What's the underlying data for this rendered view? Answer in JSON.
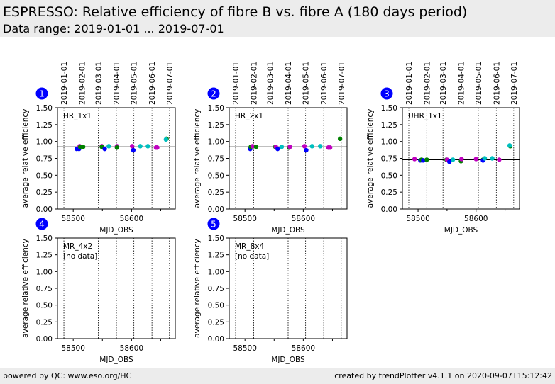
{
  "header": {
    "title": "ESPRESSO: Relative efficiency of fibre B vs. fibre A (180 days period)",
    "subtitle": "Data range: 2019-01-01 ... 2019-07-01"
  },
  "footer": {
    "left": "powered by QC: www.eso.org/HC",
    "right": "created by trendPlotter v4.1.1 on 2020-09-07T15:12:42"
  },
  "colors": {
    "blue": "#0000ff",
    "magenta": "#bf00bf",
    "green": "#008000",
    "cyan": "#00bfbf",
    "badge": "#0000ff",
    "header_bg": "#ececec"
  },
  "chart_data": [
    {
      "type": "scatter",
      "index": "1",
      "label": "HR_1x1",
      "no_data_text": "",
      "xlabel": "MJD_OBS",
      "ylabel": "average relative efficiency",
      "xlim": [
        58473,
        58675
      ],
      "ylim": [
        0,
        1.5
      ],
      "xticks": [
        58500,
        58600
      ],
      "xminor": [
        58550,
        58650
      ],
      "yticks": [
        "0.00",
        "0.25",
        "0.50",
        "0.75",
        "1.00",
        "1.25",
        "1.50"
      ],
      "reference_line": 0.92,
      "date_lines": [
        {
          "label": "2019-01-01",
          "mjd": 58484
        },
        {
          "label": "2019-02-01",
          "mjd": 58515
        },
        {
          "label": "2019-03-01",
          "mjd": 58543
        },
        {
          "label": "2019-04-01",
          "mjd": 58574
        },
        {
          "label": "2019-05-01",
          "mjd": 58604
        },
        {
          "label": "2019-06-01",
          "mjd": 58635
        },
        {
          "label": "2019-07-01",
          "mjd": 58665
        }
      ],
      "points": [
        {
          "x": 58506,
          "y": 0.89,
          "c": "blue"
        },
        {
          "x": 58510,
          "y": 0.89,
          "c": "blue"
        },
        {
          "x": 58511,
          "y": 0.93,
          "c": "magenta"
        },
        {
          "x": 58512,
          "y": 0.92,
          "c": "green"
        },
        {
          "x": 58517,
          "y": 0.92,
          "c": "green"
        },
        {
          "x": 58549,
          "y": 0.93,
          "c": "magenta"
        },
        {
          "x": 58549,
          "y": 0.92,
          "c": "green"
        },
        {
          "x": 58554,
          "y": 0.89,
          "c": "blue"
        },
        {
          "x": 58561,
          "y": 0.93,
          "c": "cyan"
        },
        {
          "x": 58575,
          "y": 0.93,
          "c": "magenta"
        },
        {
          "x": 58575,
          "y": 0.91,
          "c": "green"
        },
        {
          "x": 58601,
          "y": 0.93,
          "c": "magenta"
        },
        {
          "x": 58603,
          "y": 0.87,
          "c": "blue"
        },
        {
          "x": 58615,
          "y": 0.93,
          "c": "cyan"
        },
        {
          "x": 58628,
          "y": 0.93,
          "c": "cyan"
        },
        {
          "x": 58642,
          "y": 0.91,
          "c": "magenta"
        },
        {
          "x": 58644,
          "y": 0.91,
          "c": "magenta"
        },
        {
          "x": 58660,
          "y": 1.04,
          "c": "green"
        },
        {
          "x": 58659,
          "y": 1.03,
          "c": "cyan"
        }
      ]
    },
    {
      "type": "scatter",
      "index": "2",
      "label": "HR_2x1",
      "no_data_text": "",
      "xlabel": "MJD_OBS",
      "ylabel": "average relative efficiency",
      "xlim": [
        58473,
        58675
      ],
      "ylim": [
        0,
        1.5
      ],
      "xticks": [
        58500,
        58600
      ],
      "xminor": [
        58550,
        58650
      ],
      "yticks": [
        "0.00",
        "0.25",
        "0.50",
        "0.75",
        "1.00",
        "1.25",
        "1.50"
      ],
      "reference_line": 0.92,
      "date_lines": [
        {
          "label": "2019-01-01",
          "mjd": 58484
        },
        {
          "label": "2019-02-01",
          "mjd": 58515
        },
        {
          "label": "2019-03-01",
          "mjd": 58543
        },
        {
          "label": "2019-04-01",
          "mjd": 58574
        },
        {
          "label": "2019-05-01",
          "mjd": 58604
        },
        {
          "label": "2019-06-01",
          "mjd": 58635
        },
        {
          "label": "2019-07-01",
          "mjd": 58665
        }
      ],
      "points": [
        {
          "x": 58509,
          "y": 0.89,
          "c": "blue"
        },
        {
          "x": 58510,
          "y": 0.92,
          "c": "green"
        },
        {
          "x": 58513,
          "y": 0.93,
          "c": "magenta"
        },
        {
          "x": 58519,
          "y": 0.92,
          "c": "green"
        },
        {
          "x": 58552,
          "y": 0.92,
          "c": "green"
        },
        {
          "x": 58553,
          "y": 0.92,
          "c": "magenta"
        },
        {
          "x": 58556,
          "y": 0.89,
          "c": "blue"
        },
        {
          "x": 58563,
          "y": 0.92,
          "c": "cyan"
        },
        {
          "x": 58576,
          "y": 0.91,
          "c": "green"
        },
        {
          "x": 58577,
          "y": 0.92,
          "c": "magenta"
        },
        {
          "x": 58602,
          "y": 0.93,
          "c": "magenta"
        },
        {
          "x": 58605,
          "y": 0.87,
          "c": "blue"
        },
        {
          "x": 58615,
          "y": 0.93,
          "c": "cyan"
        },
        {
          "x": 58629,
          "y": 0.93,
          "c": "cyan"
        },
        {
          "x": 58643,
          "y": 0.91,
          "c": "magenta"
        },
        {
          "x": 58646,
          "y": 0.91,
          "c": "magenta"
        },
        {
          "x": 58663,
          "y": 1.04,
          "c": "green"
        }
      ]
    },
    {
      "type": "scatter",
      "index": "3",
      "label": "UHR_1x1",
      "no_data_text": "",
      "xlabel": "MJD_OBS",
      "ylabel": "average relative efficiency",
      "xlim": [
        58473,
        58675
      ],
      "ylim": [
        0,
        1.5
      ],
      "xticks": [
        58500,
        58600
      ],
      "xminor": [
        58550,
        58650
      ],
      "yticks": [
        "0.00",
        "0.25",
        "0.50",
        "0.75",
        "1.00",
        "1.25",
        "1.50"
      ],
      "reference_line": 0.73,
      "date_lines": [
        {
          "label": "2019-01-01",
          "mjd": 58484
        },
        {
          "label": "2019-02-01",
          "mjd": 58515
        },
        {
          "label": "2019-03-01",
          "mjd": 58543
        },
        {
          "label": "2019-04-01",
          "mjd": 58574
        },
        {
          "label": "2019-05-01",
          "mjd": 58604
        },
        {
          "label": "2019-06-01",
          "mjd": 58635
        },
        {
          "label": "2019-07-01",
          "mjd": 58665
        }
      ],
      "points": [
        {
          "x": 58494,
          "y": 0.74,
          "c": "magenta"
        },
        {
          "x": 58504,
          "y": 0.72,
          "c": "blue"
        },
        {
          "x": 58506,
          "y": 0.73,
          "c": "green"
        },
        {
          "x": 58509,
          "y": 0.72,
          "c": "blue"
        },
        {
          "x": 58515,
          "y": 0.73,
          "c": "green"
        },
        {
          "x": 58549,
          "y": 0.73,
          "c": "green"
        },
        {
          "x": 58550,
          "y": 0.73,
          "c": "magenta"
        },
        {
          "x": 58554,
          "y": 0.7,
          "c": "blue"
        },
        {
          "x": 58560,
          "y": 0.73,
          "c": "cyan"
        },
        {
          "x": 58574,
          "y": 0.71,
          "c": "green"
        },
        {
          "x": 58575,
          "y": 0.74,
          "c": "magenta"
        },
        {
          "x": 58600,
          "y": 0.74,
          "c": "magenta"
        },
        {
          "x": 58612,
          "y": 0.73,
          "c": "green"
        },
        {
          "x": 58612,
          "y": 0.72,
          "c": "blue"
        },
        {
          "x": 58615,
          "y": 0.75,
          "c": "cyan"
        },
        {
          "x": 58628,
          "y": 0.75,
          "c": "cyan"
        },
        {
          "x": 58640,
          "y": 0.73,
          "c": "magenta"
        },
        {
          "x": 58659,
          "y": 0.93,
          "c": "green"
        },
        {
          "x": 58658,
          "y": 0.94,
          "c": "cyan"
        }
      ]
    },
    {
      "type": "scatter",
      "index": "4",
      "label": "MR_4x2",
      "no_data_text": "[no data]",
      "xlabel": "MJD_OBS",
      "ylabel": "average relative efficiency",
      "xlim": [
        58473,
        58675
      ],
      "ylim": [
        0,
        1.5
      ],
      "xticks": [
        58500,
        58600
      ],
      "xminor": [
        58550,
        58650
      ],
      "yticks": [
        "0.00",
        "0.25",
        "0.50",
        "0.75",
        "1.00",
        "1.25",
        "1.50"
      ],
      "reference_line": null,
      "date_lines": [
        {
          "label": "2019-01-01",
          "mjd": 58484
        },
        {
          "label": "2019-02-01",
          "mjd": 58515
        },
        {
          "label": "2019-03-01",
          "mjd": 58543
        },
        {
          "label": "2019-04-01",
          "mjd": 58574
        },
        {
          "label": "2019-05-01",
          "mjd": 58604
        },
        {
          "label": "2019-06-01",
          "mjd": 58635
        },
        {
          "label": "2019-07-01",
          "mjd": 58665
        }
      ],
      "points": []
    },
    {
      "type": "scatter",
      "index": "5",
      "label": "MR_8x4",
      "no_data_text": "[no data]",
      "xlabel": "MJD_OBS",
      "ylabel": "average relative efficiency",
      "xlim": [
        58473,
        58675
      ],
      "ylim": [
        0,
        1.5
      ],
      "xticks": [
        58500,
        58600
      ],
      "xminor": [
        58550,
        58650
      ],
      "yticks": [
        "0.00",
        "0.25",
        "0.50",
        "0.75",
        "1.00",
        "1.25",
        "1.50"
      ],
      "reference_line": null,
      "date_lines": [
        {
          "label": "2019-01-01",
          "mjd": 58484
        },
        {
          "label": "2019-02-01",
          "mjd": 58515
        },
        {
          "label": "2019-03-01",
          "mjd": 58543
        },
        {
          "label": "2019-04-01",
          "mjd": 58574
        },
        {
          "label": "2019-05-01",
          "mjd": 58604
        },
        {
          "label": "2019-06-01",
          "mjd": 58635
        },
        {
          "label": "2019-07-01",
          "mjd": 58665
        }
      ],
      "points": []
    }
  ]
}
